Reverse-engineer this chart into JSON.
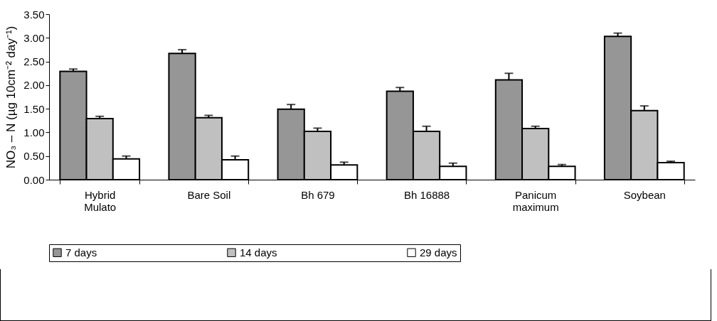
{
  "chart_data": {
    "type": "bar",
    "ylabel": "NO₃ – N (µg 10cm⁻² day⁻¹)",
    "categories": [
      "Hybrid\nMulato",
      "Bare Soil",
      "Bh 679",
      "Bh 16888",
      "Panicum\nmaximum",
      "Soybean"
    ],
    "series": [
      {
        "name": "7 days",
        "color": "#969696",
        "values": [
          2.29,
          2.67,
          1.49,
          1.87,
          2.11,
          3.03
        ],
        "errors": [
          0.05,
          0.08,
          0.1,
          0.08,
          0.14,
          0.07
        ]
      },
      {
        "name": "14 days",
        "color": "#c0c0c0",
        "values": [
          1.29,
          1.31,
          1.02,
          1.02,
          1.08,
          1.46
        ],
        "errors": [
          0.05,
          0.05,
          0.07,
          0.11,
          0.05,
          0.1
        ]
      },
      {
        "name": "29 days",
        "color": "#ffffff",
        "values": [
          0.44,
          0.42,
          0.31,
          0.28,
          0.28,
          0.36
        ],
        "errors": [
          0.06,
          0.08,
          0.06,
          0.07,
          0.04,
          0.03
        ]
      }
    ],
    "ylim": [
      0,
      3.5
    ],
    "yticks": [
      {
        "value": 0,
        "label": "0.00"
      },
      {
        "value": 0.5,
        "label": "0.50"
      },
      {
        "value": 1,
        "label": "1.00"
      },
      {
        "value": 1.5,
        "label": "1.50"
      },
      {
        "value": 2,
        "label": "2.00"
      },
      {
        "value": 2.5,
        "label": "2.50"
      },
      {
        "value": 3,
        "label": "3.00"
      },
      {
        "value": 3.5,
        "label": "3.50"
      }
    ],
    "grid": false,
    "legend": "bottom"
  }
}
